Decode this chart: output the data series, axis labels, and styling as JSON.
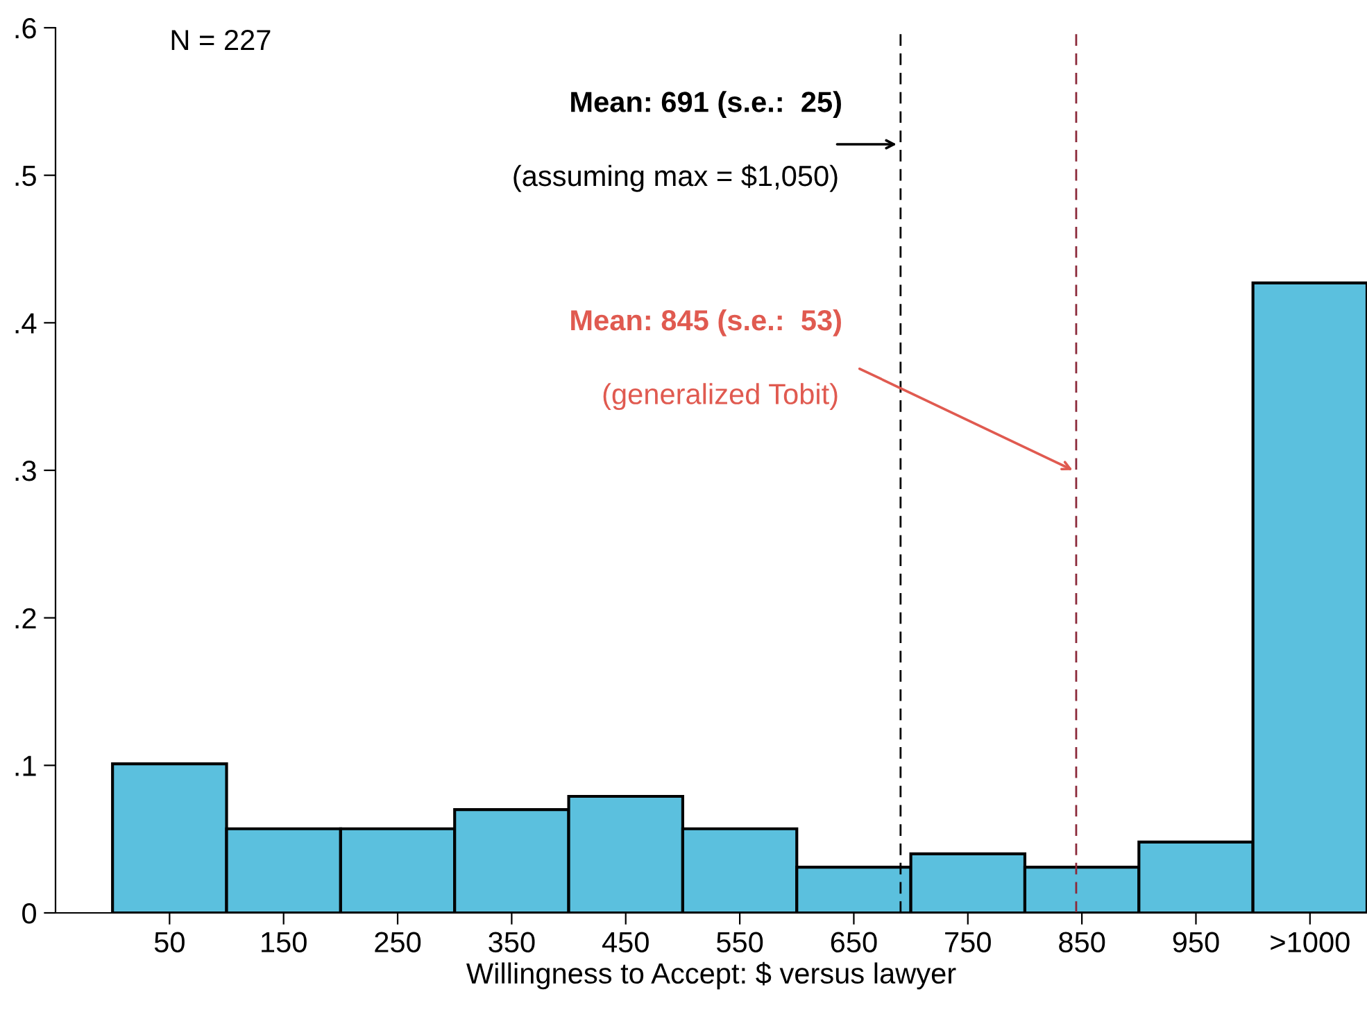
{
  "chart_data": {
    "type": "histogram",
    "xlabel": "Willingness to Accept: $ versus lawyer",
    "bins": [
      0,
      100,
      200,
      300,
      400,
      500,
      600,
      700,
      800,
      900,
      1000,
      1100
    ],
    "values": [
      0.101,
      0.057,
      0.057,
      0.07,
      0.079,
      0.057,
      0.031,
      0.04,
      0.031,
      0.048,
      0.427
    ],
    "color": "#5bc0de",
    "xlim": [
      -50,
      1100
    ],
    "xticks": [
      50,
      150,
      250,
      350,
      450,
      550,
      650,
      750,
      850,
      950,
      {
        "value": 1050,
        "label": ">1000"
      }
    ],
    "ylim": [
      0,
      0.6
    ],
    "yticks": [
      0,
      {
        "value": 0.1,
        "label": ".1"
      },
      {
        "value": 0.2,
        "label": ".2"
      },
      {
        "value": 0.3,
        "label": ".3"
      },
      {
        "value": 0.4,
        "label": ".4"
      },
      {
        "value": 0.5,
        "label": ".5"
      },
      {
        "value": 0.6,
        "label": ".6"
      }
    ],
    "grid": false,
    "ref_lines": [
      {
        "axis": "x",
        "value": 691,
        "color": "#000000",
        "line_style": "dashed"
      },
      {
        "axis": "x",
        "value": 845,
        "color": "#8b2a3a",
        "line_style": "dashed"
      }
    ],
    "annotations": [
      "N = 227",
      {
        "text": "Mean: 691 (s.e.:  25)",
        "x": 691,
        "y": 0.521
      },
      "(assuming max = $1,050)",
      {
        "text": "Mean: 845 (s.e.:  53)",
        "x": 845,
        "y": 0.299
      },
      "(generalized Tobit)"
    ]
  }
}
